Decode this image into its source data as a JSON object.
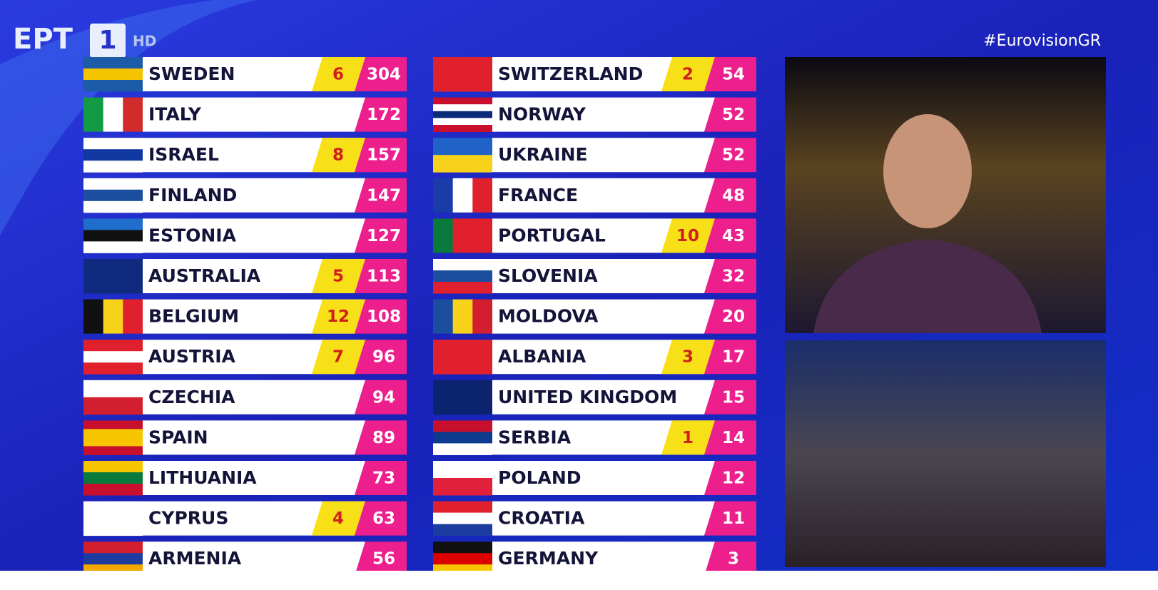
{
  "header": {
    "logo": "EPT",
    "channel": "1",
    "quality": "HD",
    "hashtag": "#EurovisionGR"
  },
  "scoreboard": {
    "columns": [
      [
        {
          "country": "SWEDEN",
          "points": 6,
          "total": 304
        },
        {
          "country": "ITALY",
          "total": 172
        },
        {
          "country": "ISRAEL",
          "points": 8,
          "total": 157
        },
        {
          "country": "FINLAND",
          "total": 147
        },
        {
          "country": "ESTONIA",
          "total": 127
        },
        {
          "country": "AUSTRALIA",
          "points": 5,
          "total": 113
        },
        {
          "country": "BELGIUM",
          "points": 12,
          "total": 108
        },
        {
          "country": "AUSTRIA",
          "points": 7,
          "total": 96
        },
        {
          "country": "CZECHIA",
          "total": 94
        },
        {
          "country": "SPAIN",
          "total": 89
        },
        {
          "country": "LITHUANIA",
          "total": 73
        },
        {
          "country": "CYPRUS",
          "points": 4,
          "total": 63
        },
        {
          "country": "ARMENIA",
          "total": 56
        }
      ],
      [
        {
          "country": "SWITZERLAND",
          "points": 2,
          "total": 54
        },
        {
          "country": "NORWAY",
          "total": 52
        },
        {
          "country": "UKRAINE",
          "total": 52
        },
        {
          "country": "FRANCE",
          "total": 48
        },
        {
          "country": "PORTUGAL",
          "points": 10,
          "total": 43
        },
        {
          "country": "SLOVENIA",
          "total": 32
        },
        {
          "country": "MOLDOVA",
          "total": 20
        },
        {
          "country": "ALBANIA",
          "points": 3,
          "total": 17
        },
        {
          "country": "UNITED KINGDOM",
          "total": 15
        },
        {
          "country": "SERBIA",
          "points": 1,
          "total": 14
        },
        {
          "country": "POLAND",
          "total": 12
        },
        {
          "country": "CROATIA",
          "total": 11
        },
        {
          "country": "GERMANY",
          "total": 3
        }
      ]
    ]
  }
}
